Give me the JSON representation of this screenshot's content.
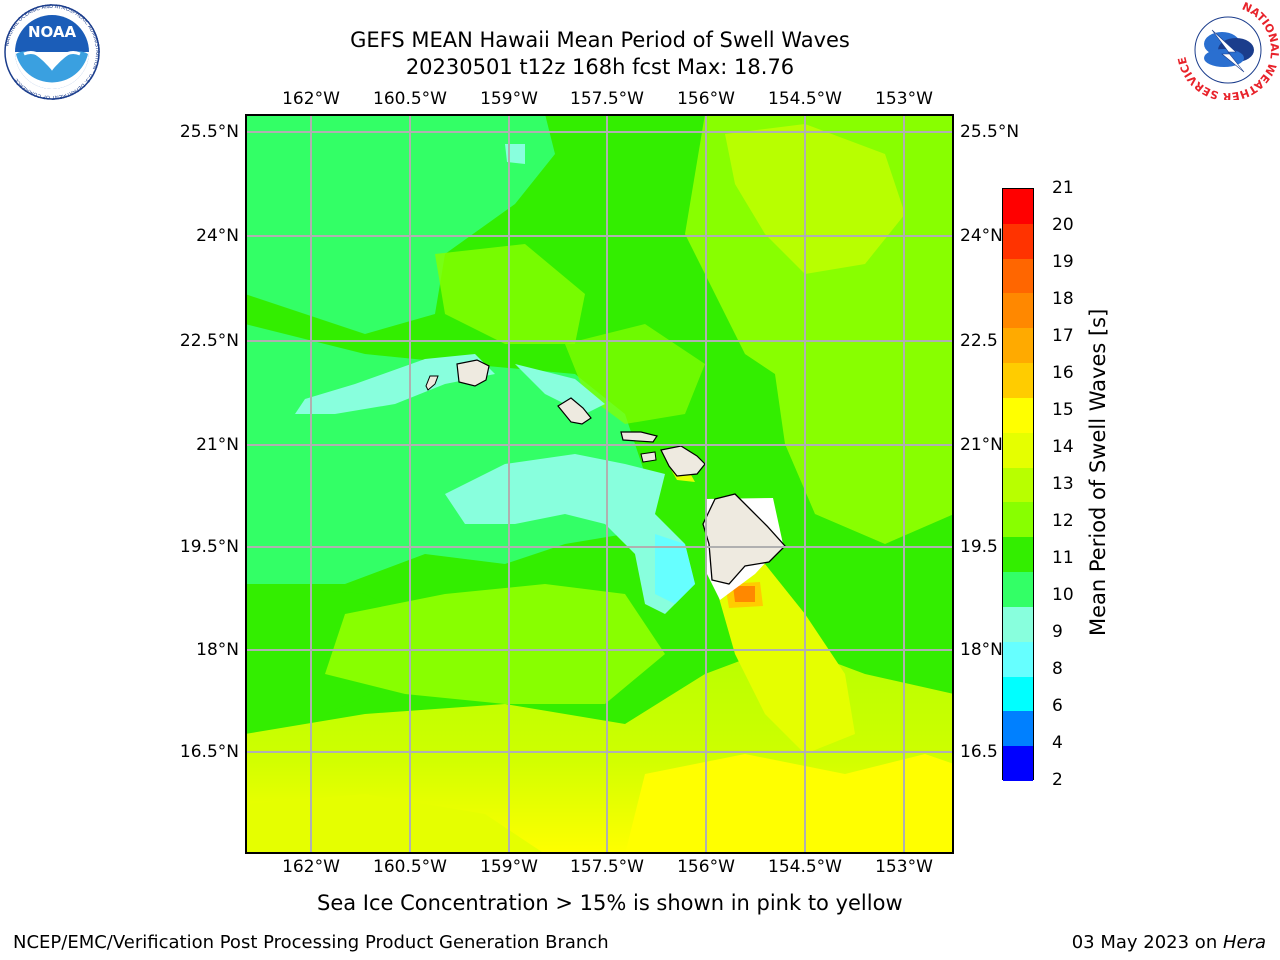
{
  "header": {
    "title_line1": "GEFS MEAN Hawaii Mean Period of Swell Waves",
    "title_line2": "20230501 t12z 168h fcst   Max: 18.76"
  },
  "logos": {
    "noaa_text": "NOAA",
    "noaa_ring": "NATIONAL OCEANIC AND ATMOSPHERIC ADMINISTRATION · U.S. DEPARTMENT OF COMMERCE",
    "nws_ring": "NATIONAL WEATHER SERVICE"
  },
  "map": {
    "lon_labels": [
      "162°W",
      "160.5°W",
      "159°W",
      "157.5°W",
      "156°W",
      "154.5°W",
      "153°W"
    ],
    "lat_labels_left": [
      "25.5°N",
      "24°N",
      "22.5°N",
      "21°N",
      "19.5°N",
      "18°N",
      "16.5°N"
    ],
    "lat_labels_right": [
      "25.5°N",
      "24°N",
      "22.5",
      "21°N",
      "19.5",
      "18°N",
      "16.5"
    ]
  },
  "colorbar": {
    "title": "Mean Period of Swell Waves [s]",
    "labels": [
      "21",
      "20",
      "19",
      "18",
      "17",
      "16",
      "15",
      "14",
      "13",
      "12",
      "11",
      "10",
      "9",
      "8",
      "6",
      "4",
      "2"
    ],
    "colors": [
      "#ff0000",
      "#ff3300",
      "#ff6600",
      "#ff8800",
      "#ffaa00",
      "#ffcc00",
      "#ffff00",
      "#e5ff00",
      "#b8ff00",
      "#88ff00",
      "#33ee00",
      "#33ff66",
      "#88ffdd",
      "#66ffff",
      "#00ffff",
      "#0080ff",
      "#0000ff"
    ]
  },
  "footer": {
    "subtitle": "Sea Ice Concentration > 15% is shown in pink to yellow",
    "left": "NCEP/EMC/Verification Post Processing Product Generation Branch",
    "right_prefix": "03 May 2023 on ",
    "right_italic": "Hera"
  }
}
